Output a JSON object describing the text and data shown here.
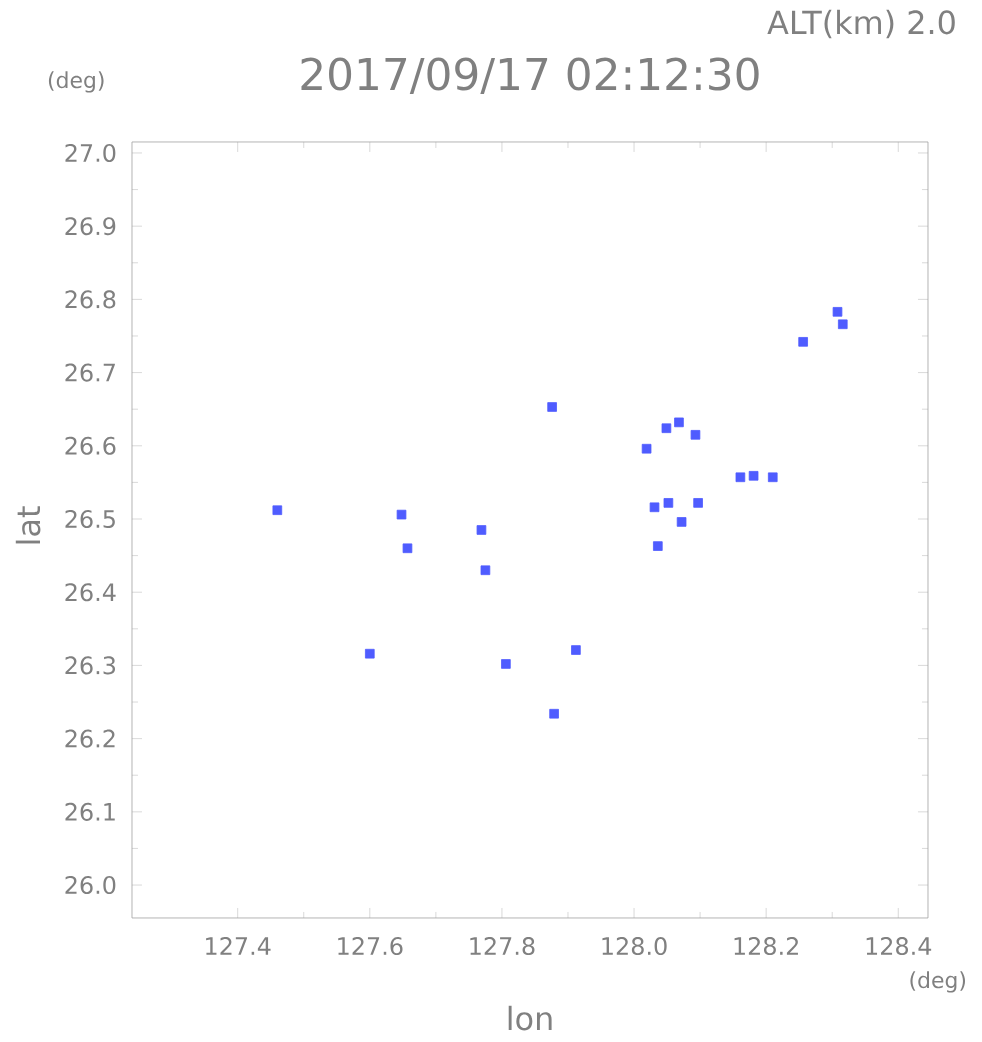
{
  "chart_data": {
    "type": "scatter",
    "title": "2017/09/17 02:12:30",
    "subtitle": "ALT(km) 2.0",
    "xlabel": "lon",
    "ylabel": "lat",
    "annotations": [
      "(deg)",
      "(deg)"
    ],
    "x": [
      127.46,
      127.6,
      127.648,
      127.657,
      127.775,
      127.769,
      127.806,
      127.876,
      127.912,
      127.879,
      128.256,
      128.308,
      128.316,
      128.049,
      128.068,
      128.093,
      128.019,
      128.161,
      128.181,
      128.21,
      128.052,
      128.031,
      128.097,
      128.072,
      128.036
    ],
    "series": [
      {
        "color": "#4f5cff",
        "values": [
          26.512,
          26.316,
          26.506,
          26.46,
          26.43,
          26.485,
          26.302,
          26.653,
          26.321,
          26.234,
          26.742,
          26.783,
          26.766,
          26.624,
          26.632,
          26.615,
          26.596,
          26.557,
          26.559,
          26.557,
          26.522,
          26.516,
          26.522,
          26.496,
          26.463
        ]
      }
    ],
    "marker": "square",
    "xlim": [
      127.24,
      128.445
    ],
    "ylim": [
      25.955,
      27.015
    ],
    "xticks": [
      {
        "value": 127.4,
        "label": "127.4"
      },
      {
        "value": 127.6,
        "label": "127.6"
      },
      {
        "value": 127.8,
        "label": "127.8"
      },
      {
        "value": 128.0,
        "label": "128.0"
      },
      {
        "value": 128.2,
        "label": "128.2"
      },
      {
        "value": 128.4,
        "label": "128.4"
      }
    ],
    "yticks": [
      {
        "value": 26.0,
        "label": "26.0"
      },
      {
        "value": 26.1,
        "label": "26.1"
      },
      {
        "value": 26.2,
        "label": "26.2"
      },
      {
        "value": 26.3,
        "label": "26.3"
      },
      {
        "value": 26.4,
        "label": "26.4"
      },
      {
        "value": 26.5,
        "label": "26.5"
      },
      {
        "value": 26.6,
        "label": "26.6"
      },
      {
        "value": 26.7,
        "label": "26.7"
      },
      {
        "value": 26.8,
        "label": "26.8"
      },
      {
        "value": 26.9,
        "label": "26.9"
      },
      {
        "value": 27.0,
        "label": "27.0"
      }
    ]
  }
}
